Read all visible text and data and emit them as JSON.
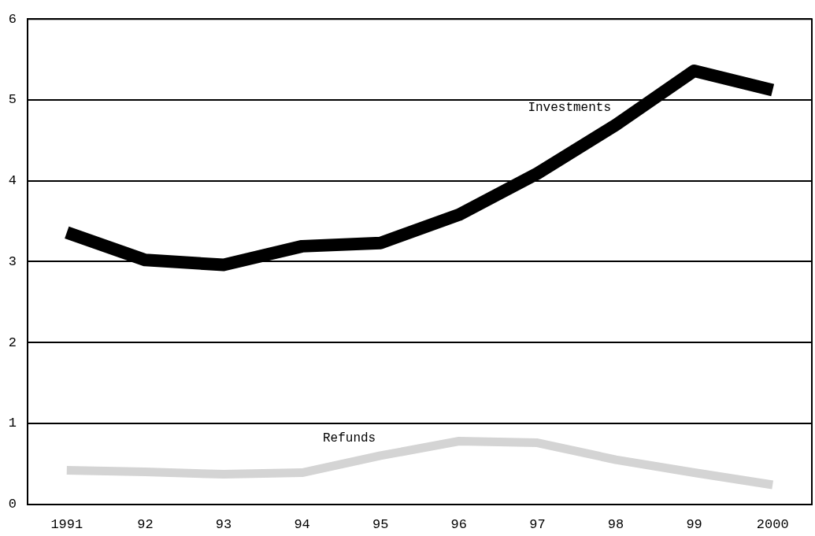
{
  "chart_data": {
    "type": "line",
    "categories": [
      "1991",
      "92",
      "93",
      "94",
      "95",
      "96",
      "97",
      "98",
      "99",
      "2000"
    ],
    "series": [
      {
        "name": "Investments",
        "color": "#000000",
        "values": [
          3.36,
          3.02,
          2.96,
          3.19,
          3.23,
          3.58,
          4.09,
          4.69,
          5.36,
          5.12
        ]
      },
      {
        "name": "Refunds",
        "color": "#d4d4d4",
        "values": [
          0.42,
          0.4,
          0.37,
          0.39,
          0.6,
          0.78,
          0.76,
          0.55,
          0.39,
          0.24
        ]
      }
    ],
    "ylim": [
      0,
      6
    ],
    "yticks": [
      0,
      1,
      2,
      3,
      4,
      5,
      6
    ],
    "grid": "y",
    "legend": false,
    "marker": "none",
    "line_style": "solid"
  }
}
